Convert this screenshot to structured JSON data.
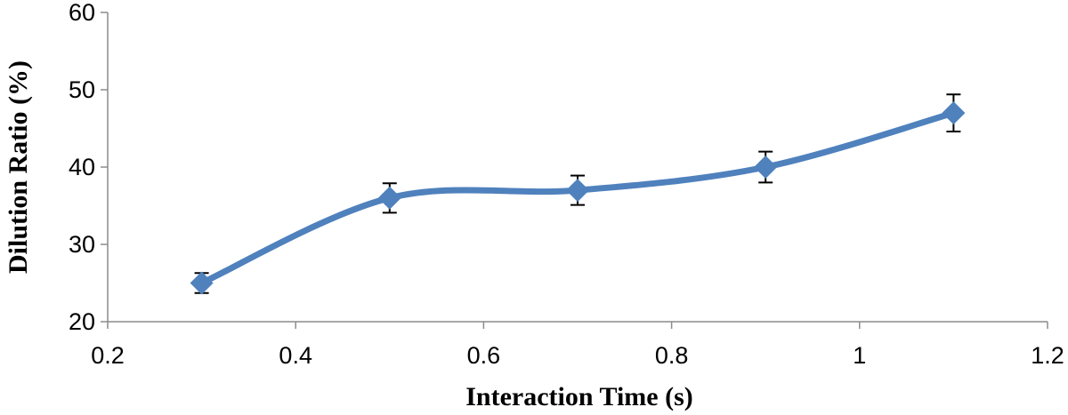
{
  "chart_data": {
    "type": "line",
    "title": "",
    "xlabel": "Interaction Time (s)",
    "ylabel": "Dilution Ratio (%)",
    "xlim": [
      0.2,
      1.2
    ],
    "ylim": [
      20,
      60
    ],
    "x_ticks": [
      "0.2",
      "0.4",
      "0.6",
      "0.8",
      "1",
      "1.2"
    ],
    "y_ticks": [
      "20",
      "30",
      "40",
      "50",
      "60"
    ],
    "grid": false,
    "legend": "none",
    "smooth": true,
    "series": [
      {
        "color": "#4f81bd",
        "marker": "diamond",
        "x": [
          0.3,
          0.5,
          0.7,
          0.9,
          1.1
        ],
        "y": [
          25,
          36,
          37,
          40,
          47
        ],
        "error": [
          1.3,
          1.9,
          1.9,
          2.0,
          2.4
        ]
      }
    ]
  }
}
